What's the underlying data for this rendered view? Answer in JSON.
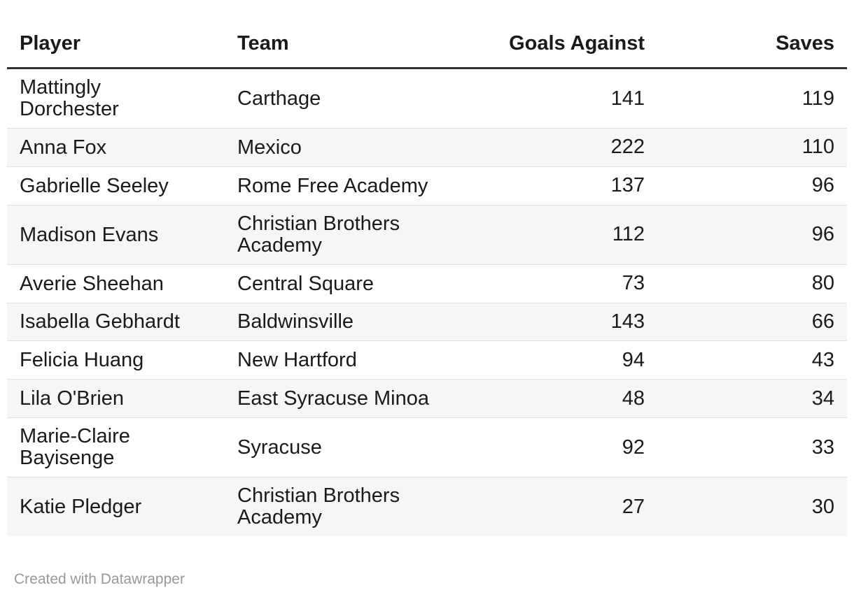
{
  "chart_data": {
    "type": "table",
    "columns": [
      {
        "label": "Player",
        "align": "left"
      },
      {
        "label": "Team",
        "align": "left"
      },
      {
        "label": "Goals Against",
        "align": "right"
      },
      {
        "label": "Saves",
        "align": "right"
      }
    ],
    "rows": [
      {
        "player": "Mattingly Dorchester",
        "team": "Carthage",
        "goals_against": 141,
        "saves": 119
      },
      {
        "player": "Anna Fox",
        "team": "Mexico",
        "goals_against": 222,
        "saves": 110
      },
      {
        "player": "Gabrielle Seeley",
        "team": "Rome Free Academy",
        "goals_against": 137,
        "saves": 96
      },
      {
        "player": "Madison Evans",
        "team": "Christian Brothers Academy",
        "goals_against": 112,
        "saves": 96
      },
      {
        "player": "Averie Sheehan",
        "team": "Central Square",
        "goals_against": 73,
        "saves": 80
      },
      {
        "player": "Isabella Gebhardt",
        "team": "Baldwinsville",
        "goals_against": 143,
        "saves": 66
      },
      {
        "player": "Felicia Huang",
        "team": "New Hartford",
        "goals_against": 94,
        "saves": 43
      },
      {
        "player": "Lila O'Brien",
        "team": "East Syracuse Minoa",
        "goals_against": 48,
        "saves": 34
      },
      {
        "player": "Marie-Claire Bayisenge",
        "team": "Syracuse",
        "goals_against": 92,
        "saves": 33
      },
      {
        "player": "Katie Pledger",
        "team": "Christian Brothers Academy",
        "goals_against": 27,
        "saves": 30
      }
    ],
    "layout": {
      "zebra_striping": true,
      "header_rule": true
    }
  },
  "footer": {
    "attribution": "Created with Datawrapper"
  },
  "colors": {
    "background": "#ffffff",
    "text": "#1a1a1a",
    "header_rule": "#333333",
    "row_divider": "#e0e0e0",
    "zebra_row_bg": "#f6f6f6",
    "attribution_text": "#999999"
  }
}
